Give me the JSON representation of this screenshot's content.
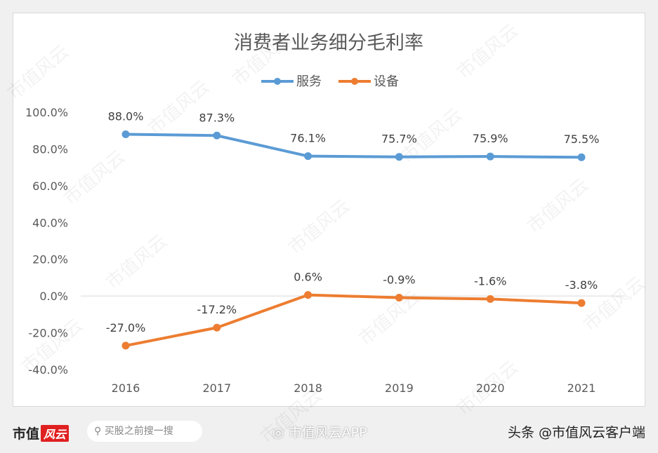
{
  "chart_data": {
    "type": "line",
    "title": "消费者业务细分毛利率",
    "categories": [
      "2016",
      "2017",
      "2018",
      "2019",
      "2020",
      "2021"
    ],
    "series": [
      {
        "name": "服务",
        "color": "#5b9bd5",
        "values": [
          88.0,
          87.3,
          76.1,
          75.7,
          75.9,
          75.5
        ],
        "labels": [
          "88.0%",
          "87.3%",
          "76.1%",
          "75.7%",
          "75.9%",
          "75.5%"
        ]
      },
      {
        "name": "设备",
        "color": "#ed7d31",
        "values": [
          -27.0,
          -17.2,
          0.6,
          -0.9,
          -1.6,
          -3.8
        ],
        "labels": [
          "-27.0%",
          "-17.2%",
          "0.6%",
          "-0.9%",
          "-1.6%",
          "-3.8%"
        ]
      }
    ],
    "yticks": [
      "100.0%",
      "80.0%",
      "60.0%",
      "40.0%",
      "20.0%",
      "0.0%",
      "-20.0%",
      "-40.0%"
    ],
    "ylim": [
      -40,
      100
    ],
    "grid": false,
    "legend": "top"
  },
  "watermark": "市值风云",
  "footer": {
    "logo_text": "市值",
    "logo_badge": "风云",
    "search_placeholder": "买股之前搜一搜",
    "weibo_text": "市值风云APP",
    "toutiao_text": "头条 @市值风云客户端"
  }
}
